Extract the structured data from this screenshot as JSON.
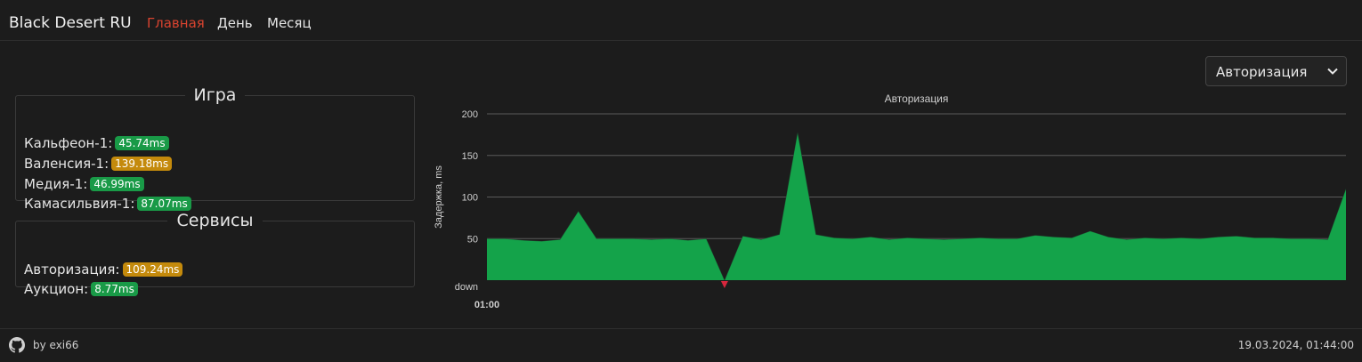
{
  "header": {
    "brand": "Black Desert RU",
    "nav": [
      {
        "label": "Главная",
        "active": true
      },
      {
        "label": "День",
        "active": false
      },
      {
        "label": "Месяц",
        "active": false
      }
    ]
  },
  "selector": {
    "value": "Авторизация",
    "icon": "chevron-down-icon"
  },
  "game": {
    "title": "Игра",
    "servers": [
      {
        "name": "Кальфеон-1:",
        "ping": "45.74ms",
        "status": "green"
      },
      {
        "name": "Валенсия-1:",
        "ping": "139.18ms",
        "status": "orange"
      },
      {
        "name": "Медия-1:",
        "ping": "46.99ms",
        "status": "green"
      },
      {
        "name": "Камасильвия-1:",
        "ping": "87.07ms",
        "status": "green"
      }
    ]
  },
  "services": {
    "title": "Сервисы",
    "items": [
      {
        "name": "Авторизация:",
        "ping": "109.24ms",
        "status": "orange"
      },
      {
        "name": "Аукцион:",
        "ping": "8.77ms",
        "status": "green"
      }
    ]
  },
  "colors": {
    "green": "#199a47",
    "orange": "#c48a0c",
    "accent": "#d8432f",
    "area": "#14a34a",
    "down": "#d7263d"
  },
  "chart_data": {
    "type": "area",
    "title": "Авторизация",
    "ylabel": "Задержка, ms",
    "xlabel": "",
    "ylim": [
      0,
      200
    ],
    "y_ticks": [
      {
        "value": 0,
        "label": "down"
      },
      {
        "value": 50,
        "label": "50"
      },
      {
        "value": 100,
        "label": "100"
      },
      {
        "value": 150,
        "label": "150"
      },
      {
        "value": 200,
        "label": "200"
      }
    ],
    "x_ticks": [
      {
        "index": 0,
        "label": "01:00"
      }
    ],
    "grid": true,
    "series": [
      {
        "values": [
          50,
          50,
          48,
          47,
          49,
          83,
          50,
          50,
          50,
          49,
          50,
          48,
          50,
          0,
          53,
          49,
          55,
          178,
          55,
          51,
          50,
          52,
          49,
          51,
          50,
          49,
          50,
          51,
          50,
          50,
          54,
          52,
          51,
          59,
          52,
          49,
          51,
          50,
          51,
          50,
          52,
          53,
          51,
          51,
          50,
          50,
          49,
          110
        ],
        "down_markers": [
          13
        ]
      }
    ]
  },
  "footer": {
    "author": "by exi66",
    "timestamp": "19.03.2024, 01:44:00",
    "icon": "github-icon"
  }
}
